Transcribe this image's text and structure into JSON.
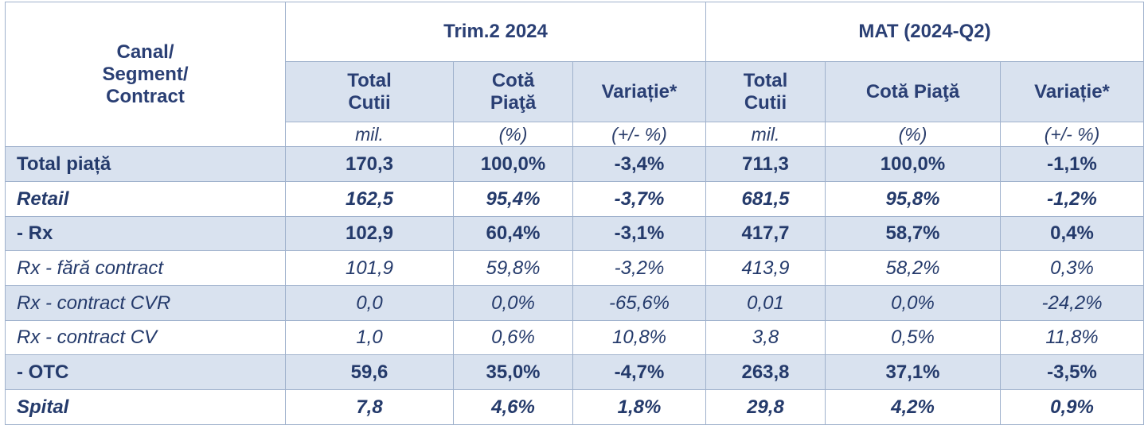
{
  "header": {
    "corner": "Canal/ Segment/ Contract",
    "group1": "Trim.2 2024",
    "group2": "MAT (2024-Q2)",
    "g1_cols": [
      "Total Cutii",
      "Cotă Piaţă",
      "Variație*"
    ],
    "g2_cols": [
      "Total Cutii",
      "Cotă Piaţă",
      "Variație*"
    ],
    "units": [
      "mil.",
      "(%)",
      "(+/- %)",
      "mil.",
      "(%)",
      "(+/- %)"
    ]
  },
  "rows": [
    {
      "label": "Total piață",
      "values": [
        "170,3",
        "100,0%",
        "-3,4%",
        "711,3",
        "100,0%",
        "-1,1%"
      ]
    },
    {
      "label": "Retail",
      "values": [
        "162,5",
        "95,4%",
        "-3,7%",
        "681,5",
        "95,8%",
        "-1,2%"
      ]
    },
    {
      "label": "- Rx",
      "values": [
        "102,9",
        "60,4%",
        "-3,1%",
        "417,7",
        "58,7%",
        "0,4%"
      ]
    },
    {
      "label": "Rx - fără contract",
      "values": [
        "101,9",
        "59,8%",
        "-3,2%",
        "413,9",
        "58,2%",
        "0,3%"
      ]
    },
    {
      "label": "Rx - contract CVR",
      "values": [
        "0,0",
        "0,0%",
        "-65,6%",
        "0,01",
        "0,0%",
        "-24,2%"
      ]
    },
    {
      "label": "Rx - contract CV",
      "values": [
        "1,0",
        "0,6%",
        "10,8%",
        "3,8",
        "0,5%",
        "11,8%"
      ]
    },
    {
      "label": "- OTC",
      "values": [
        "59,6",
        "35,0%",
        "-4,7%",
        "263,8",
        "37,1%",
        "-3,5%"
      ]
    },
    {
      "label": "Spital",
      "values": [
        "7,8",
        "4,6%",
        "1,8%",
        "29,8",
        "4,2%",
        "0,9%"
      ]
    }
  ],
  "colors": {
    "shade": "#d9e2ef",
    "text": "#243a6b",
    "border": "#9fb1cc"
  }
}
